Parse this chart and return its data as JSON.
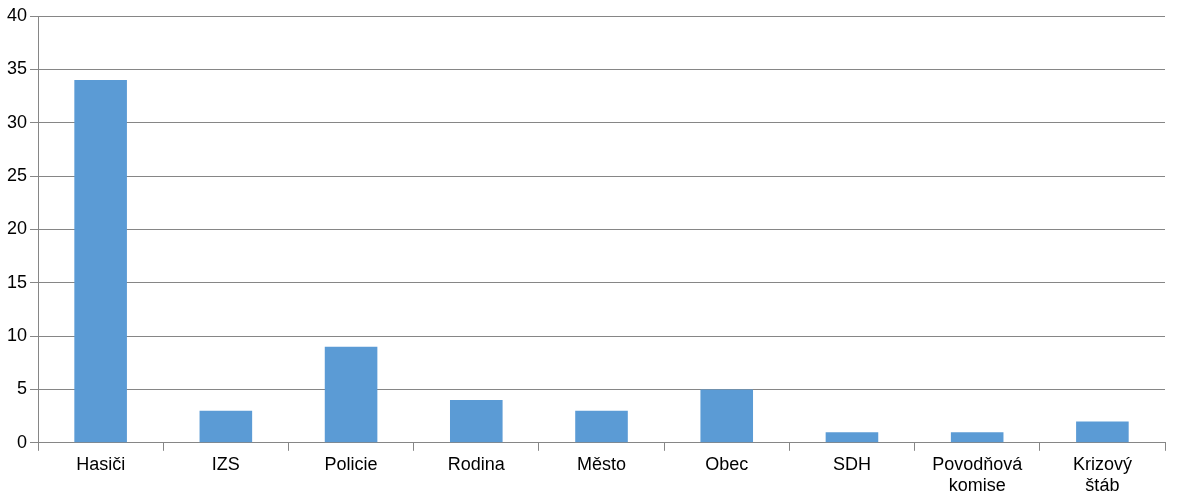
{
  "chart_data": {
    "type": "bar",
    "categories": [
      "Hasiči",
      "IZS",
      "Policie",
      "Rodina",
      "Město",
      "Obec",
      "SDH",
      "Povodňová komise",
      "Krizový štáb"
    ],
    "values": [
      34,
      3,
      9,
      4,
      3,
      5,
      1,
      1,
      2
    ],
    "color": "#5b9bd5",
    "ylim": [
      0,
      40
    ],
    "yticks": [
      0,
      5,
      10,
      15,
      20,
      25,
      30,
      35,
      40
    ],
    "grid": "y"
  }
}
